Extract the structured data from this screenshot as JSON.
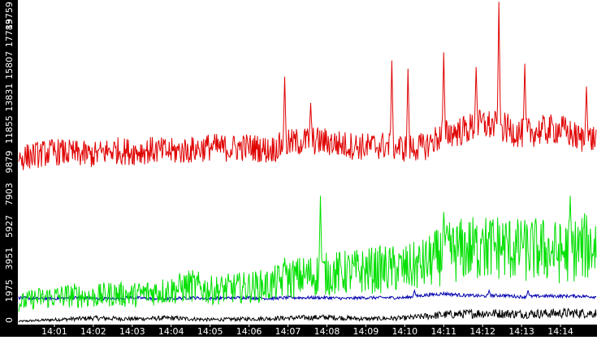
{
  "chart_data": {
    "type": "line",
    "title": "",
    "xlabel": "",
    "ylabel": "",
    "ylim": [
      0,
      19759
    ],
    "xlim": [
      "14:00:05",
      "14:14:55"
    ],
    "y_ticks": [
      "0",
      "1975",
      "3951",
      "5927",
      "7903",
      "9879",
      "11855",
      "13831",
      "15807",
      "17783",
      "19759"
    ],
    "x_ticks": [
      "14:01",
      "14:02",
      "14:03",
      "14:04",
      "14:05",
      "14:06",
      "14:07",
      "14:08",
      "14:09",
      "14:10",
      "14:11",
      "14:12",
      "14:13",
      "14:14"
    ],
    "grid": false,
    "legend": "none",
    "colors": {
      "background": "#ffffff",
      "axis_bar": "#000000",
      "tick_text": "#ffffff",
      "red": "#e00000",
      "green": "#00e000",
      "blue": "#0000b0",
      "black": "#000000"
    },
    "series": [
      {
        "color": "red",
        "x": [
          "14:00:05",
          "14:00:30",
          "14:01:00",
          "14:01:30",
          "14:02:00",
          "14:02:30",
          "14:03:00",
          "14:03:30",
          "14:04:00",
          "14:04:30",
          "14:05:00",
          "14:05:30",
          "14:06:00",
          "14:06:30",
          "14:07:00",
          "14:07:30",
          "14:08:00",
          "14:08:30",
          "14:09:00",
          "14:09:30",
          "14:10:00",
          "14:10:30",
          "14:11:00",
          "14:11:30",
          "14:12:00",
          "14:12:30",
          "14:13:00",
          "14:13:30",
          "14:14:00",
          "14:14:30",
          "14:14:55"
        ],
        "values": [
          10100,
          10300,
          10500,
          10400,
          10300,
          10600,
          10500,
          10600,
          10500,
          10600,
          10800,
          10700,
          10800,
          10600,
          11000,
          11200,
          11100,
          10900,
          10800,
          10900,
          10700,
          10800,
          11600,
          11800,
          12200,
          12000,
          11600,
          11800,
          11900,
          11300,
          11300
        ],
        "peaks": [
          {
            "x": "14:06:55",
            "y": 15100
          },
          {
            "x": "14:07:35",
            "y": 13500
          },
          {
            "x": "14:09:40",
            "y": 16100
          },
          {
            "x": "14:10:05",
            "y": 15600
          },
          {
            "x": "14:11:00",
            "y": 16600
          },
          {
            "x": "14:11:50",
            "y": 15700
          },
          {
            "x": "14:12:25",
            "y": 19700
          },
          {
            "x": "14:13:05",
            "y": 15900
          },
          {
            "x": "14:14:40",
            "y": 14500
          }
        ]
      },
      {
        "color": "green",
        "x": [
          "14:00:05",
          "14:00:30",
          "14:01:00",
          "14:01:30",
          "14:02:00",
          "14:02:30",
          "14:03:00",
          "14:03:30",
          "14:04:00",
          "14:04:30",
          "14:05:00",
          "14:05:30",
          "14:06:00",
          "14:06:30",
          "14:07:00",
          "14:07:30",
          "14:08:00",
          "14:08:30",
          "14:09:00",
          "14:09:30",
          "14:10:00",
          "14:10:30",
          "14:11:00",
          "14:11:30",
          "14:12:00",
          "14:12:30",
          "14:13:00",
          "14:13:30",
          "14:14:00",
          "14:14:30",
          "14:14:55"
        ],
        "values": [
          1200,
          1500,
          1600,
          1700,
          1600,
          1800,
          1700,
          1900,
          2000,
          2300,
          2000,
          2100,
          2200,
          2300,
          2700,
          2900,
          3000,
          3100,
          3200,
          3300,
          3300,
          3600,
          4200,
          4500,
          4600,
          4700,
          4400,
          4500,
          4300,
          4600,
          4800
        ],
        "peaks": [
          {
            "x": "14:06:55",
            "y": 4000
          },
          {
            "x": "14:07:50",
            "y": 7800
          },
          {
            "x": "14:11:00",
            "y": 6800
          },
          {
            "x": "14:12:00",
            "y": 5800
          },
          {
            "x": "14:13:00",
            "y": 5300
          },
          {
            "x": "14:14:15",
            "y": 7800
          }
        ]
      },
      {
        "color": "blue",
        "x": [
          "14:00:05",
          "14:00:30",
          "14:01:00",
          "14:01:30",
          "14:02:00",
          "14:02:30",
          "14:03:00",
          "14:03:30",
          "14:04:00",
          "14:04:30",
          "14:05:00",
          "14:05:30",
          "14:06:00",
          "14:06:30",
          "14:07:00",
          "14:07:30",
          "14:08:00",
          "14:08:30",
          "14:09:00",
          "14:09:30",
          "14:10:00",
          "14:10:30",
          "14:11:00",
          "14:11:30",
          "14:12:00",
          "14:12:30",
          "14:13:00",
          "14:13:30",
          "14:14:00",
          "14:14:30",
          "14:14:55"
        ],
        "values": [
          1550,
          1500,
          1500,
          1550,
          1500,
          1500,
          1550,
          1500,
          1500,
          1550,
          1500,
          1550,
          1550,
          1500,
          1550,
          1550,
          1550,
          1500,
          1550,
          1550,
          1550,
          1700,
          1800,
          1700,
          1650,
          1700,
          1600,
          1650,
          1650,
          1650,
          1600
        ],
        "peaks": [
          {
            "x": "14:10:15",
            "y": 2000
          },
          {
            "x": "14:12:10",
            "y": 2000
          },
          {
            "x": "14:13:10",
            "y": 2000
          }
        ]
      },
      {
        "color": "black",
        "x": [
          "14:00:05",
          "14:01:00",
          "14:02:00",
          "14:03:00",
          "14:04:00",
          "14:05:00",
          "14:06:00",
          "14:07:00",
          "14:08:00",
          "14:09:00",
          "14:10:00",
          "14:11:00",
          "14:12:00",
          "14:13:00",
          "14:14:00",
          "14:14:55"
        ],
        "values": [
          100,
          200,
          300,
          250,
          300,
          200,
          250,
          300,
          350,
          250,
          300,
          500,
          600,
          550,
          600,
          600
        ],
        "peaks": []
      }
    ]
  }
}
